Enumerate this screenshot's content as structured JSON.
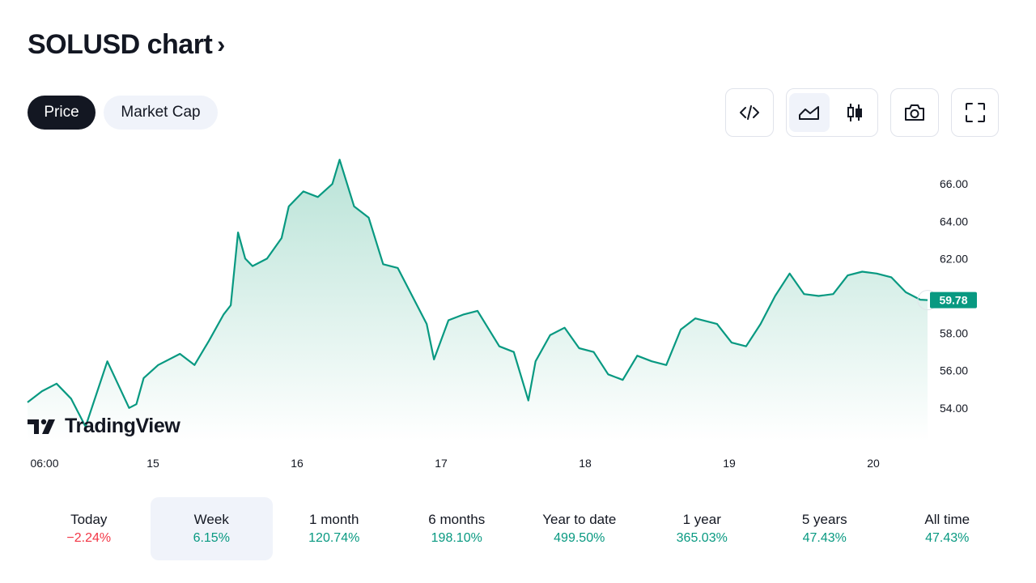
{
  "header": {
    "title": "SOLUSD chart",
    "chevron": "›"
  },
  "toggle": {
    "price_label": "Price",
    "market_cap_label": "Market Cap",
    "active": "Price"
  },
  "toolbar": {
    "icons": [
      "embed-code-icon",
      "area-chart-icon",
      "candlestick-icon",
      "camera-icon",
      "fullscreen-icon"
    ],
    "active": "area-chart-icon"
  },
  "branding": {
    "logo_text": "TradingView"
  },
  "colors": {
    "line": "#089981",
    "fill_top": "#b9e3d7",
    "fill_bottom": "#ffffff",
    "positive": "#089981",
    "negative": "#f23645"
  },
  "chart_data": {
    "type": "area",
    "symbol": "SOLUSD",
    "x_tick_labels": [
      "06:00",
      "15",
      "16",
      "17",
      "18",
      "19",
      "20"
    ],
    "y_tick_labels": [
      "54.00",
      "56.00",
      "58.00",
      "60.00",
      "62.00",
      "64.00",
      "66.00"
    ],
    "ylim": [
      52.3,
      67.7
    ],
    "last_price": "59.78",
    "grid": false,
    "series": [
      {
        "x": [
          14.2,
          14.3,
          14.4,
          14.5,
          14.6,
          14.75,
          14.9,
          14.95,
          15.0,
          15.1,
          15.25,
          15.35,
          15.45,
          15.55,
          15.6,
          15.65,
          15.7,
          15.75,
          15.85,
          15.95,
          16.0,
          16.1,
          16.2,
          16.3,
          16.35,
          16.45,
          16.55,
          16.65,
          16.75,
          16.85,
          16.95,
          17.0,
          17.1,
          17.2,
          17.3,
          17.45,
          17.55,
          17.65,
          17.7,
          17.8,
          17.9,
          18.0,
          18.1,
          18.2,
          18.3,
          18.4,
          18.5,
          18.6,
          18.7,
          18.8,
          18.95,
          19.05,
          19.15,
          19.25,
          19.35,
          19.45,
          19.55,
          19.65,
          19.75,
          19.85,
          19.95,
          20.05,
          20.15,
          20.25,
          20.35,
          20.4
        ],
        "y": [
          54.3,
          54.9,
          55.3,
          54.5,
          53.0,
          56.5,
          54.0,
          54.2,
          55.6,
          56.3,
          56.9,
          56.3,
          57.6,
          59.0,
          59.5,
          63.4,
          62.0,
          61.6,
          62.0,
          63.1,
          64.8,
          65.6,
          65.3,
          66.0,
          67.3,
          64.8,
          64.2,
          61.7,
          61.5,
          60.0,
          58.5,
          56.6,
          58.7,
          59.0,
          59.2,
          57.3,
          57.0,
          54.4,
          56.5,
          57.9,
          58.3,
          57.2,
          57.0,
          55.8,
          55.5,
          56.8,
          56.5,
          56.3,
          58.2,
          58.8,
          58.5,
          57.5,
          57.3,
          58.5,
          60.0,
          61.2,
          60.1,
          60.0,
          60.1,
          61.1,
          61.3,
          61.2,
          61.0,
          60.2,
          59.8,
          59.78
        ]
      }
    ]
  },
  "periods": [
    {
      "label": "Today",
      "value": "−2.24%",
      "sign": "neg"
    },
    {
      "label": "Week",
      "value": "6.15%",
      "sign": "pos"
    },
    {
      "label": "1 month",
      "value": "120.74%",
      "sign": "pos"
    },
    {
      "label": "6 months",
      "value": "198.10%",
      "sign": "pos"
    },
    {
      "label": "Year to date",
      "value": "499.50%",
      "sign": "pos"
    },
    {
      "label": "1 year",
      "value": "365.03%",
      "sign": "pos"
    },
    {
      "label": "5 years",
      "value": "47.43%",
      "sign": "pos"
    },
    {
      "label": "All time",
      "value": "47.43%",
      "sign": "pos"
    }
  ],
  "active_period": "Week"
}
